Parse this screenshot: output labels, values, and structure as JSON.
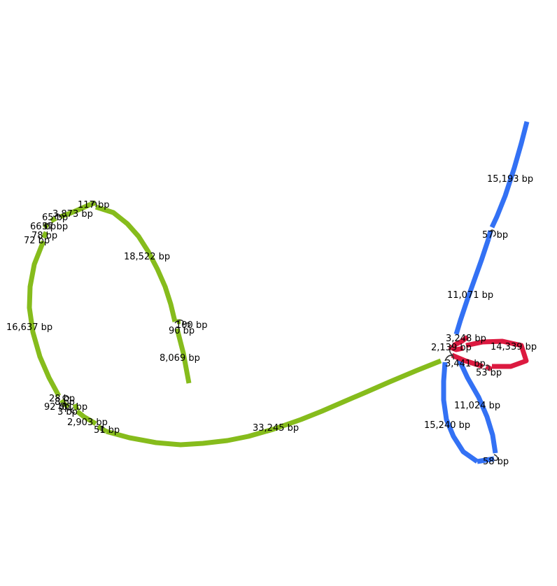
{
  "colors": {
    "green": "#86bc1c",
    "blue": "#3371f4",
    "red": "#dc1a40",
    "link": "#333333"
  },
  "segments": {
    "blue_top": "15,193 bp",
    "blue_57": "57 bp",
    "blue_11071": "11,071 bp",
    "blue_11024": "11,024 bp",
    "blue_15240": "15,240 bp",
    "blue_58": "58 bp",
    "red_3248": "3,248 bp",
    "red_2139": "2,139 bp",
    "red_14339": "14,339 bp",
    "red_3441": "3,441 bp",
    "red_53": "53 bp",
    "green_33245": "33,245 bp",
    "green_51": "51 bp",
    "green_2903": "2,903 bp",
    "green_3": "3 bp",
    "green_92": "92 bp",
    "green_61": "61 bp",
    "green_28": "28 bp",
    "green_8": "8 bp",
    "green_16637": "16,637 bp",
    "green_72": "72 bp",
    "green_78": "78 bp",
    "green_66": "66 bp",
    "green_57": "57 bp",
    "green_65": "65 bp",
    "green_3873": "3,873 bp",
    "green_117": "117 bp",
    "green_18522": "18,522 bp",
    "green_100": "100 bp",
    "green_90": "90 bp",
    "green_8069": "8,069 bp"
  }
}
